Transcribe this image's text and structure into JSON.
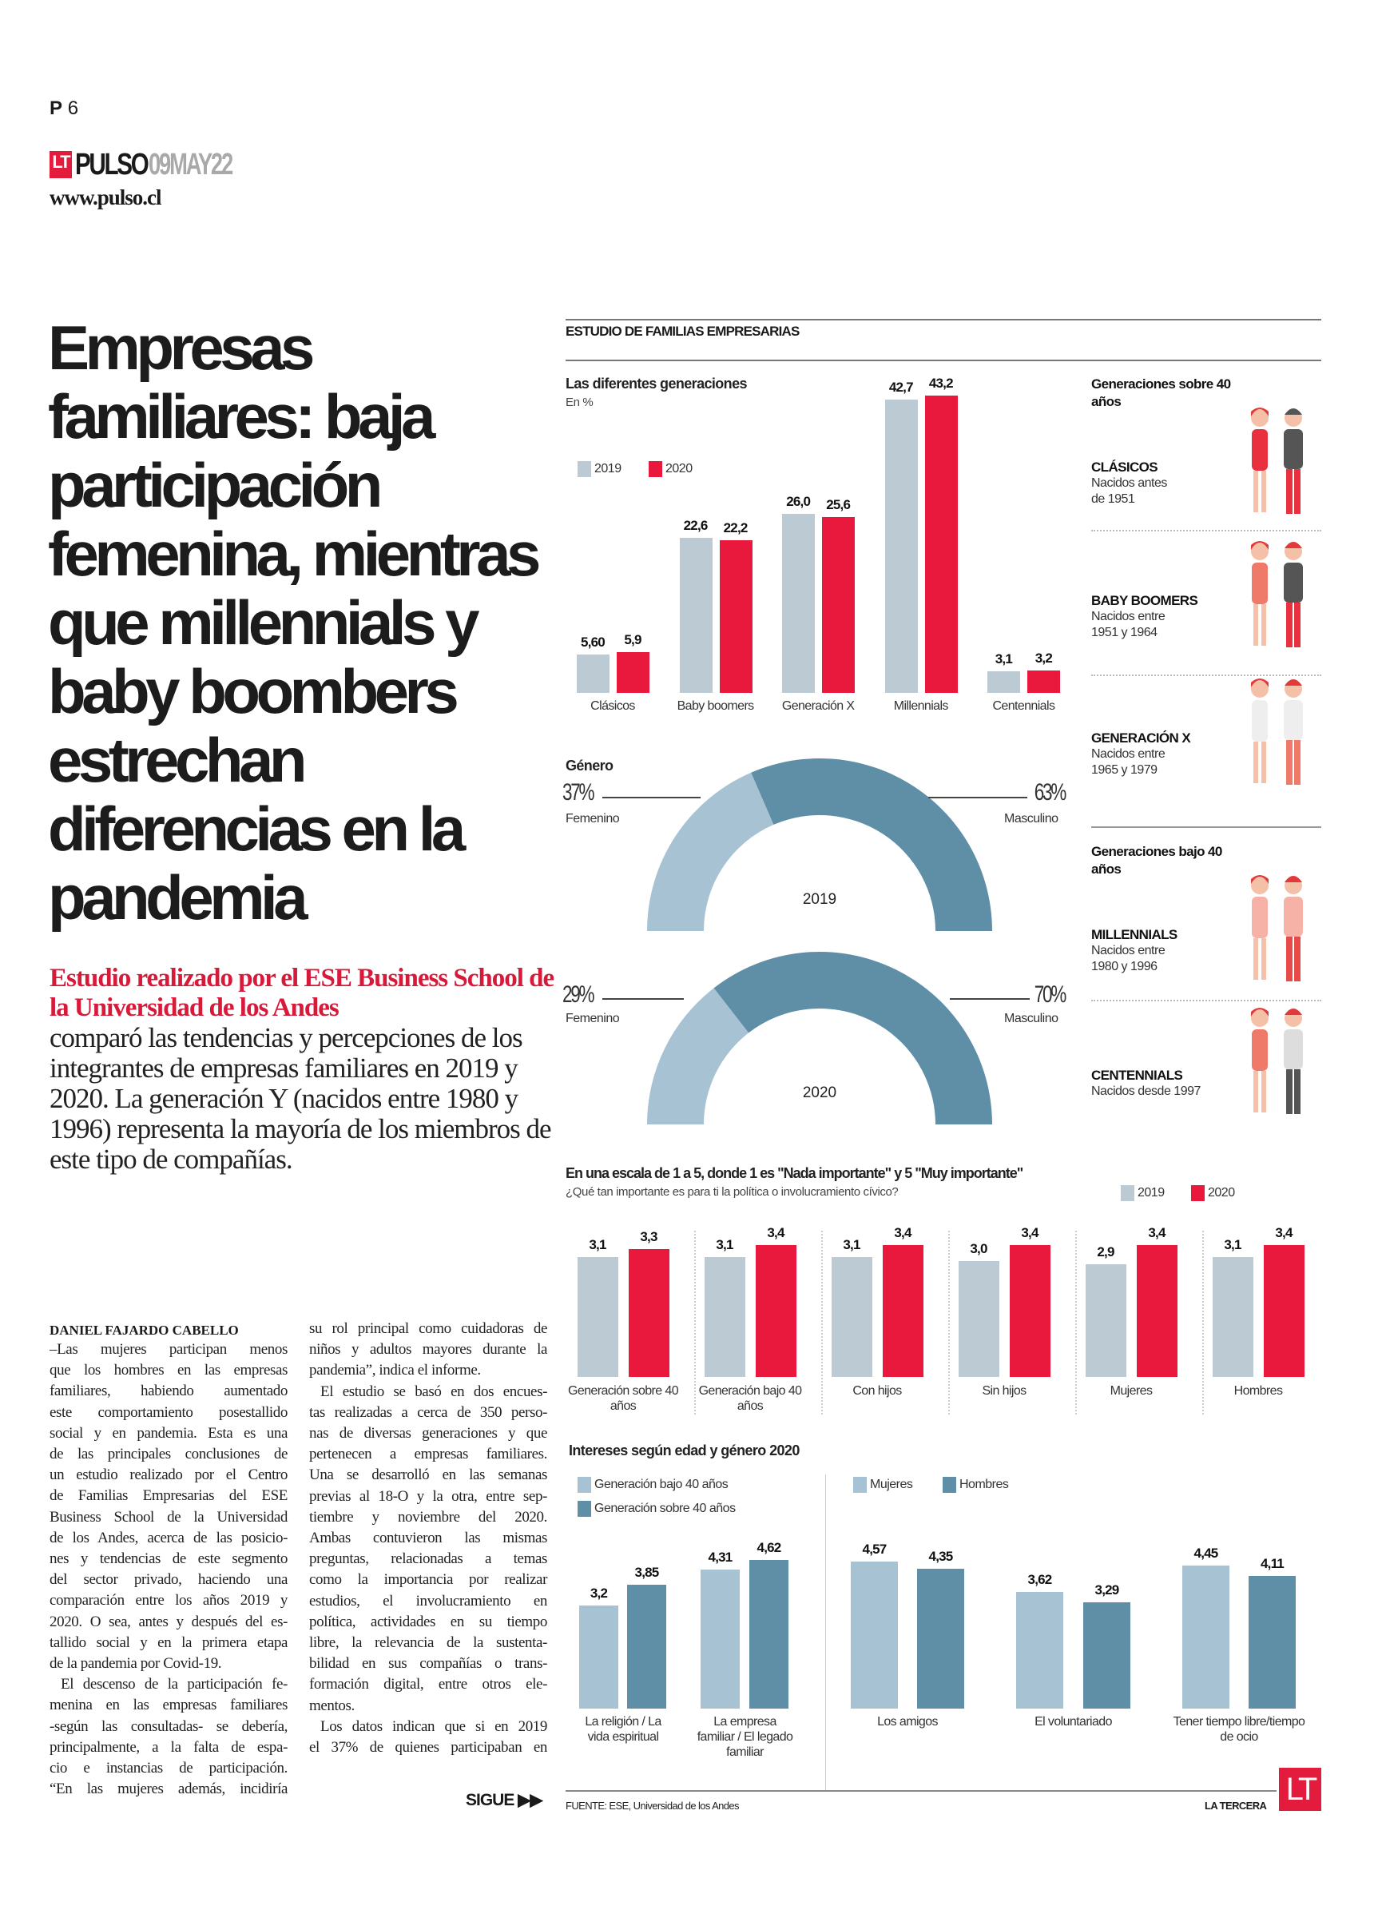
{
  "page": {
    "prefix": "P",
    "number": "6"
  },
  "masthead": {
    "logo_mark": "LT",
    "section": "PULSO",
    "date": "09MAY22",
    "url": "www.pulso.cl"
  },
  "article": {
    "headline": "Empresas familiares: baja participación femenina, mientras que millennials y baby boombers estrechan diferencias en la pandemia",
    "deck_highlight": "Estudio realizado por el ESE Business School de la Universidad de los Andes",
    "deck_rest": "comparó las tendencias y percepciones de los integrantes de empresas familiares en 2019 y 2020. La generación Y (nacidos entre 1980 y 1996) representa la mayoría de los miembros de este tipo de compañías.",
    "byline": "DANIEL FAJARDO CABELLO",
    "col1": [
      [
        "–Las mujeres participan menos",
        "que los hombres en las empresas",
        "familiares, habiendo aumentado",
        "este comportamiento posestallido",
        "social y en pandemia. Esta es una",
        "de las principales conclusiones de",
        "un estudio realizado por el Centro",
        "de Familias Empresarias del ESE",
        "Business School de la Universidad",
        "de los Andes, acerca de las posicio-",
        "nes y tendencias de este segmento",
        "del sector privado, haciendo una",
        "comparación entre los años 2019 y",
        "2020. O sea, antes y después del es-",
        "tallido social y en la primera etapa",
        "de la pandemia por Covid-19."
      ],
      [
        "El descenso de la participación fe-",
        "menina en las empresas familiares",
        "-según las consultadas- se debería,",
        "principalmente, a la falta de espa-",
        "cio e instancias de participación.",
        "“En las mujeres además, incidiría"
      ]
    ],
    "col2": [
      [
        "su rol principal como cuidadoras de",
        "niños y adultos mayores durante la",
        "pandemia”, indica el informe."
      ],
      [
        "El estudio se basó en dos encues-",
        "tas realizadas a cerca de 350 perso-",
        "nas de diversas generaciones y que",
        "pertenecen a empresas familiares.",
        "Una se desarrolló en las semanas",
        "previas al 18-O y la otra, entre sep-",
        "tiembre y noviembre del 2020.",
        "Ambas contuvieron las mismas",
        "preguntas, relacionadas a temas",
        "como la importancia por realizar",
        "estudios, el involucramiento en",
        "política, actividades en su tiempo",
        "libre, la relevancia de la sustenta-",
        "bilidad en sus compañías o trans-",
        "formación digital, entre otros ele-",
        "mentos."
      ],
      [
        "Los datos indican que si en 2019",
        "el 37% de quienes participaban en"
      ]
    ],
    "continue_label": "SIGUE"
  },
  "infographic": {
    "title": "ESTUDIO DE FAMILIAS EMPRESARIAS",
    "source": "FUENTE: ESE, Universidad de los Andes",
    "credit": "LA TERCERA",
    "credit_logo": "LT",
    "generations_panel": {
      "over40_title": "Generaciones sobre 40 años",
      "under40_title": "Generaciones bajo 40 años",
      "items": [
        {
          "name": "CLÁSICOS",
          "desc": "Nacidos antes de 1951",
          "desc_lines": [
            "Nacidos antes",
            "de 1951"
          ]
        },
        {
          "name": "BABY BOOMERS",
          "desc": "Nacidos entre 1951 y 1964",
          "desc_lines": [
            "Nacidos entre",
            "1951 y 1964"
          ]
        },
        {
          "name": "GENERACIÓN X",
          "desc": "Nacidos entre 1965 y 1979",
          "desc_lines": [
            "Nacidos entre",
            "1965 y 1979"
          ]
        },
        {
          "name": "MILLENNIALS",
          "desc": "Nacidos entre 1980 y 1996",
          "desc_lines": [
            "Nacidos entre",
            "1980 y 1996"
          ]
        },
        {
          "name": "CENTENNIALS",
          "desc": "Nacidos desde 1997",
          "desc_lines": [
            "Nacidos desde 1997"
          ]
        }
      ]
    },
    "colors": {
      "y2019": "#bccbd3",
      "y2020": "#e8193c",
      "light_blue": "#a7c3d3",
      "dark_blue": "#5e8fa7"
    }
  },
  "chart_data": [
    {
      "type": "bar",
      "title": "Las diferentes generaciones",
      "subtitle": "En %",
      "categories": [
        "Clásicos",
        "Baby boomers",
        "Generación X",
        "Millennials",
        "Centennials"
      ],
      "series": [
        {
          "name": "2019",
          "values": [
            5.6,
            22.6,
            26.0,
            42.7,
            3.1
          ],
          "labels": [
            "5,60",
            "22,6",
            "26,0",
            "42,7",
            "3,1"
          ]
        },
        {
          "name": "2020",
          "values": [
            5.9,
            22.2,
            25.6,
            43.2,
            3.2
          ],
          "labels": [
            "5,9",
            "22,2",
            "25,6",
            "43,2",
            "3,2"
          ]
        }
      ],
      "legend": "top-left"
    },
    {
      "type": "pie",
      "title": "Género",
      "charts": [
        {
          "year": "2019",
          "slices": [
            {
              "name": "Femenino",
              "value": 37,
              "label": "37%"
            },
            {
              "name": "Masculino",
              "value": 63,
              "label": "63%"
            }
          ]
        },
        {
          "year": "2020",
          "slices": [
            {
              "name": "Femenino",
              "value": 29,
              "label": "29%"
            },
            {
              "name": "Masculino",
              "value": 70,
              "label": "70%"
            }
          ]
        }
      ]
    },
    {
      "type": "bar",
      "title": "En una escala de 1 a 5, donde 1 es \"Nada importante\" y 5 \"Muy importante\"",
      "subtitle": "¿Qué tan importante es para ti la política o involucramiento cívico?",
      "categories": [
        "Generación sobre 40 años",
        "Generación bajo 40 años",
        "Con hijos",
        "Sin hijos",
        "Mujeres",
        "Hombres"
      ],
      "series": [
        {
          "name": "2019",
          "values": [
            3.1,
            3.1,
            3.1,
            3.0,
            2.9,
            3.1
          ],
          "labels": [
            "3,1",
            "3,1",
            "3,1",
            "3,0",
            "2,9",
            "3,1"
          ]
        },
        {
          "name": "2020",
          "values": [
            3.3,
            3.4,
            3.4,
            3.4,
            3.4,
            3.4
          ],
          "labels": [
            "3,3",
            "3,4",
            "3,4",
            "3,4",
            "3,4",
            "3,4"
          ]
        }
      ],
      "legend": "top-right"
    },
    {
      "type": "bar",
      "title": "Intereses según edad y género 2020",
      "groups": [
        {
          "series_names": [
            "Generación bajo 40 años",
            "Generación sobre 40 años"
          ],
          "categories": [
            "La religión / La vida espiritual",
            "La empresa familiar / El legado familiar"
          ],
          "values": [
            [
              3.2,
              3.85
            ],
            [
              4.31,
              4.62
            ]
          ],
          "labels": [
            [
              "3,2",
              "3,85"
            ],
            [
              "4,31",
              "4,62"
            ]
          ]
        },
        {
          "series_names": [
            "Mujeres",
            "Hombres"
          ],
          "categories": [
            "Los amigos",
            "El voluntariado",
            "Tener tiempo libre/tiempo de ocio"
          ],
          "values": [
            [
              4.57,
              4.35
            ],
            [
              3.62,
              3.29
            ],
            [
              4.45,
              4.11
            ]
          ],
          "labels": [
            [
              "4,57",
              "4,35"
            ],
            [
              "3,62",
              "3,29"
            ],
            [
              "4,45",
              "4,11"
            ]
          ]
        }
      ]
    }
  ]
}
